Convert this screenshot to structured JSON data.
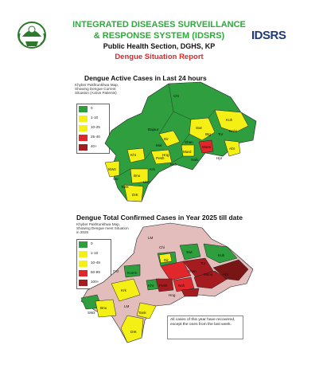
{
  "header": {
    "title_line1": "INTEGRATED DISEASES SURVEILLANCE",
    "title_line2": "& RESPONSE SYSTEM (IDSRS)",
    "subtitle": "Public Health Section, DGHS, KP",
    "report_title": "Dengue Situation Report",
    "right_logo_text": "IDSRS"
  },
  "colors": {
    "title_green": "#2eaa3a",
    "report_red": "#e0272b",
    "zero": "#2e9e3f",
    "low": "#f4ef14",
    "mid": "#e0272b",
    "high": "#a51c20",
    "top": "#7a1515",
    "none": "#e3bcbc"
  },
  "map1": {
    "title": "Dengue Active Cases in Last 24 hours",
    "caption": "Khyber Pakhtunkhwa Map, Showing Dengue Current Situation (Active Patients)",
    "legend": [
      {
        "label": "0",
        "color": "#2e9e3f"
      },
      {
        "label": "1-10",
        "color": "#f4ef14"
      },
      {
        "label": "10-25",
        "color": "#f4ef14"
      },
      {
        "label": "25-40",
        "color": "#e0272b"
      },
      {
        "label": "40+",
        "color": "#a51c20"
      }
    ],
    "district_labels": [
      "Chi",
      "Kuh",
      "Dir",
      "Swt",
      "Tor",
      "Bajaur",
      "Mal",
      "Shan",
      "Btg",
      "Kolai",
      "Mans",
      "Abt",
      "Hpr",
      "Mard",
      "Swb",
      "Pesh",
      "Nsh",
      "Kht",
      "Krk",
      "Bnu",
      "NWz",
      "Lkm",
      "Tank",
      "DIK",
      "Sw",
      "Hng"
    ]
  },
  "map2": {
    "title": "Dengue Total Confirmed Cases in Year 2025 till date",
    "caption": "Khyber Pakhtunkhwa Map, Showing Dengue ment Situation in 2025",
    "legend": [
      {
        "label": "0",
        "color": "#2e9e3f"
      },
      {
        "label": "1-10",
        "color": "#f4ef14"
      },
      {
        "label": "10-49",
        "color": "#f4ef14"
      },
      {
        "label": "50-99",
        "color": "#e0272b"
      },
      {
        "label": "100+",
        "color": "#a51c20"
      }
    ],
    "district_labels": [
      "LM",
      "Chi",
      "Dir",
      "Swt",
      "Tor",
      "Kuh",
      "Shan",
      "Mans",
      "Abt",
      "Pesh",
      "Nsh",
      "Kht",
      "Krk",
      "Bnu",
      "Kurrm",
      "SWz",
      "LM",
      "Tank",
      "DIK",
      "Hng",
      "Orz"
    ],
    "note": "All cases of this year have recovered, except the ones from the last week."
  }
}
